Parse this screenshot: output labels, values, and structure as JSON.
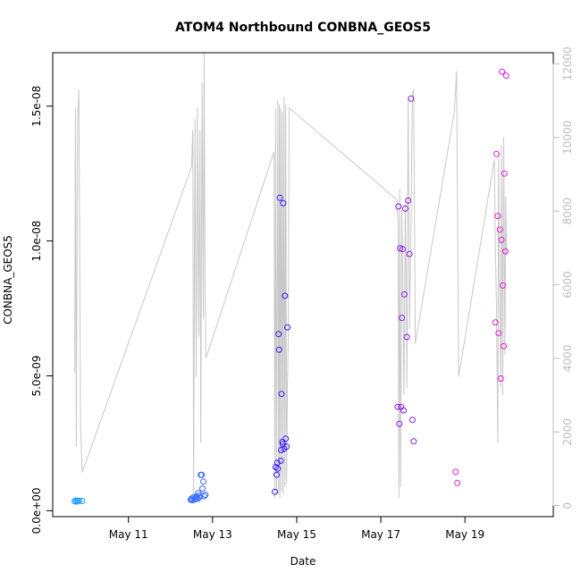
{
  "chart_data": {
    "type": "scatter",
    "title": "ATOM4 Northbound CONBNA_GEOS5",
    "xlabel": "Date",
    "ylabel": "CONBNA_GEOS5",
    "x_ticks": [
      "May 11",
      "May 13",
      "May 15",
      "May 17",
      "May 19"
    ],
    "x_tick_days": [
      11,
      13,
      15,
      17,
      19
    ],
    "xlim": [
      9.2,
      21.1
    ],
    "y_ticks": [
      "0.0e+00",
      "5.0e-09",
      "1.0e-08",
      "1.5e-08"
    ],
    "y_tick_values": [
      0,
      5e-09,
      1e-08,
      1.5e-08
    ],
    "ylim": [
      -2.2e-10,
      1.698e-08
    ],
    "y2_ticks": [
      "0",
      "2000",
      "4000",
      "6000",
      "8000",
      "10000",
      "12000"
    ],
    "y2_tick_values": [
      0,
      2000,
      4000,
      6000,
      8000,
      10000,
      12000
    ],
    "y2lim": [
      -300,
      12300
    ],
    "grid": false,
    "colors": {
      "frame": "#000000",
      "secondary_axis": "#bdbdbd",
      "altitude_line": "#c8c8c8",
      "flight_1": "#1a9fff",
      "flight_2": "#2f66ff",
      "flight_3": "#3c14ff",
      "flight_4": "#8a17e8",
      "flight_5": "#e619d6"
    },
    "series": [
      {
        "color_key": "flight_1",
        "x": [
          9.72,
          9.75,
          9.77,
          9.8,
          9.83,
          9.9
        ],
        "y": [
          3.5e-10,
          3.8e-10,
          3.4e-10,
          3.6e-10,
          3.7e-10,
          3.6e-10
        ]
      },
      {
        "color_key": "flight_2",
        "x": [
          12.48,
          12.5,
          12.52,
          12.55,
          12.57,
          12.6,
          12.62,
          12.64,
          12.66,
          12.68,
          12.7,
          12.72,
          12.74,
          12.76,
          12.78,
          12.8,
          12.83
        ],
        "y": [
          4.1e-10,
          4.5e-10,
          3.9e-10,
          5e-10,
          4.2e-10,
          4.6e-10,
          5.3e-10,
          4.4e-10,
          6.5e-10,
          4.9e-10,
          5.6e-10,
          1.33e-09,
          1.33e-09,
          8.2e-10,
          1.08e-09,
          5.4e-10,
          5.9e-10
        ]
      },
      {
        "color_key": "flight_3",
        "x": [
          14.48,
          14.5,
          14.52,
          14.54,
          14.55,
          14.57,
          14.58,
          14.6,
          14.62,
          14.63,
          14.64,
          14.66,
          14.67,
          14.68,
          14.7,
          14.72,
          14.74,
          14.76,
          14.78
        ],
        "y": [
          7e-10,
          1.62e-09,
          1.33e-09,
          1.78e-09,
          1.56e-09,
          6.55e-09,
          5.97e-09,
          1.16e-08,
          1.85e-09,
          2.25e-09,
          4.33e-09,
          2.55e-09,
          2.47e-09,
          1.14e-08,
          2.3e-09,
          7.97e-09,
          2.67e-09,
          2.37e-09,
          6.8e-09
        ]
      },
      {
        "color_key": "flight_4",
        "x": [
          17.4,
          17.42,
          17.44,
          17.46,
          17.48,
          17.5,
          17.52,
          17.54,
          17.56,
          17.58,
          17.62,
          17.65,
          17.68,
          17.72,
          17.75,
          17.78
        ],
        "y": [
          3.85e-09,
          1.128e-08,
          3.22e-09,
          9.73e-09,
          3.85e-09,
          7.15e-09,
          9.7e-09,
          3.72e-09,
          8.02e-09,
          1.12e-08,
          6.44e-09,
          1.15e-08,
          9.52e-09,
          1.528e-08,
          3.37e-09,
          2.57e-09
        ]
      },
      {
        "color_key": "flight_5",
        "x": [
          18.78,
          18.82,
          19.72,
          19.75,
          19.78,
          19.8,
          19.83,
          19.85,
          19.87,
          19.88,
          19.9,
          19.92,
          19.94,
          19.96,
          19.98
        ],
        "y": [
          1.44e-09,
          1.03e-09,
          6.98e-09,
          1.323e-08,
          1.093e-08,
          6.58e-09,
          1.042e-08,
          4.9e-09,
          1.004e-08,
          1.628e-08,
          8.35e-09,
          6.1e-09,
          1.25e-08,
          9.62e-09,
          1.613e-08
        ]
      }
    ],
    "altitude_line": {
      "axis": "y2",
      "x": [
        9.72,
        9.74,
        9.76,
        9.79,
        9.82,
        9.86,
        9.9,
        12.5,
        12.53,
        12.55,
        12.58,
        12.61,
        12.64,
        12.67,
        12.7,
        12.72,
        12.75,
        12.78,
        12.8,
        12.82,
        12.84,
        14.46,
        14.48,
        14.5,
        14.52,
        14.55,
        14.57,
        14.59,
        14.6,
        14.62,
        14.64,
        14.66,
        14.68,
        14.7,
        14.72,
        14.74,
        14.76,
        14.78,
        14.8,
        14.82,
        17.39,
        17.41,
        17.43,
        17.45,
        17.47,
        17.5,
        17.52,
        17.55,
        17.58,
        17.62,
        17.65,
        17.68,
        17.72,
        17.75,
        17.78,
        17.82,
        18.75,
        18.8,
        18.85,
        19.7,
        19.72,
        19.75,
        19.78,
        19.8,
        19.82,
        19.85,
        19.87,
        19.9,
        19.92,
        19.95,
        19.97,
        19.99
      ],
      "y": [
        3600,
        10800,
        1600,
        10400,
        11300,
        2200,
        900,
        9200,
        10200,
        300,
        10500,
        3500,
        10800,
        4600,
        10200,
        1700,
        11500,
        5100,
        12300,
        6000,
        4000,
        9600,
        200,
        10800,
        300,
        11000,
        300,
        10900,
        200,
        10800,
        400,
        10700,
        300,
        11100,
        500,
        10900,
        600,
        3300,
        4500,
        10800,
        8300,
        7600,
        200,
        8600,
        500,
        8000,
        6400,
        3000,
        8200,
        3200,
        11100,
        4800,
        7800,
        11200,
        11300,
        4400,
        10700,
        11800,
        3500,
        9400,
        7100,
        5400,
        1700,
        9600,
        6200,
        3200,
        9800,
        3000,
        10000,
        4100,
        8400,
        6800
      ]
    }
  }
}
